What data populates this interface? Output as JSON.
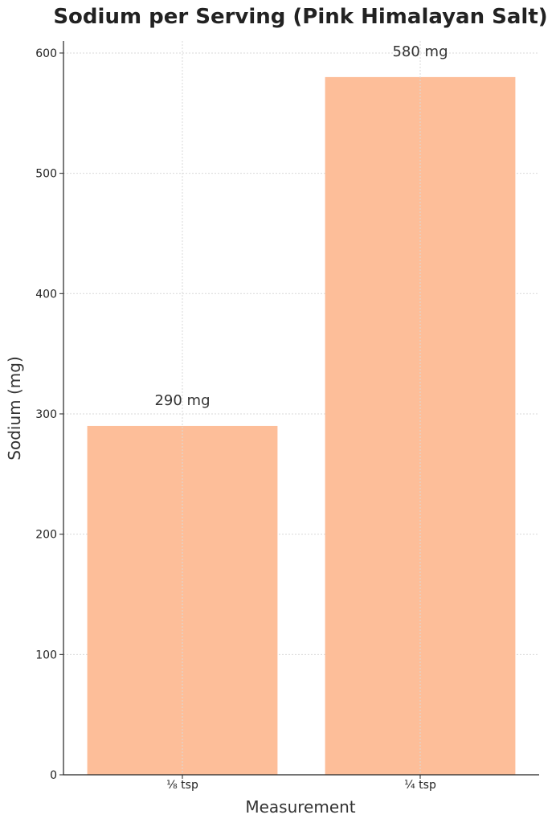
{
  "chart_data": {
    "type": "bar",
    "title": "Sodium per Serving (Pink Himalayan Salt)",
    "xlabel": "Measurement",
    "ylabel": "Sodium (mg)",
    "categories": [
      "⅛ tsp",
      "¼ tsp"
    ],
    "values": [
      290,
      580
    ],
    "data_labels": [
      "290 mg",
      "580 mg"
    ],
    "ylim": [
      0,
      610
    ],
    "yticks": [
      0,
      100,
      200,
      300,
      400,
      500,
      600
    ],
    "grid": true,
    "bar_color": "#fdbe99"
  }
}
